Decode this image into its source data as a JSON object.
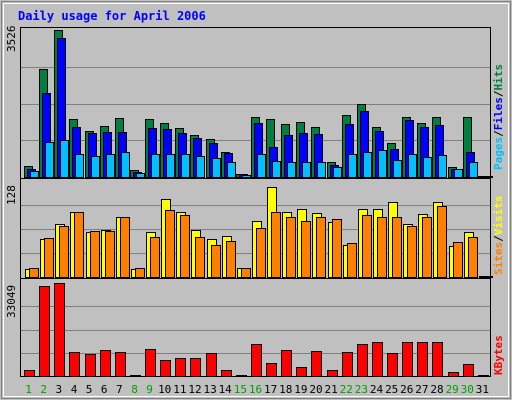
{
  "chart_data": {
    "type": "bar",
    "title": "Daily usage for April 2006",
    "categories": [
      "1",
      "2",
      "3",
      "4",
      "5",
      "6",
      "7",
      "8",
      "9",
      "10",
      "11",
      "12",
      "13",
      "14",
      "15",
      "16",
      "17",
      "18",
      "19",
      "20",
      "21",
      "22",
      "23",
      "24",
      "25",
      "26",
      "27",
      "28",
      "29",
      "30",
      "31"
    ],
    "weekend_days": [
      "1",
      "2",
      "8",
      "9",
      "15",
      "16",
      "22",
      "23",
      "29",
      "30"
    ],
    "panels": [
      {
        "name": "hits-files-pages",
        "ymax_label": "3526",
        "ymax": 3526,
        "series": [
          {
            "name": "Hits",
            "color": "#008040",
            "values": [
              260,
              2580,
              3526,
              1390,
              1110,
              1230,
              1410,
              160,
              1400,
              1300,
              1170,
              1000,
              900,
              590,
              80,
              1450,
              1400,
              1270,
              1320,
              1190,
              350,
              1480,
              1750,
              1210,
              820,
              1430,
              1300,
              1430,
              240,
              1450,
              0
            ]
          },
          {
            "name": "Files",
            "color": "#0000ff",
            "values": [
              190,
              2020,
              3340,
              1210,
              1060,
              1080,
              1090,
              120,
              1170,
              1150,
              1060,
              940,
              820,
              580,
              60,
              1300,
              720,
              1000,
              1050,
              1020,
              280,
              1270,
              1580,
              1100,
              680,
              1360,
              1200,
              1250,
              200,
              590,
              0
            ]
          },
          {
            "name": "Pages",
            "color": "#00c0ff",
            "values": [
              140,
              850,
              880,
              540,
              500,
              540,
              590,
              90,
              560,
              540,
              540,
              510,
              460,
              350,
              40,
              560,
              390,
              360,
              360,
              350,
              230,
              550,
              610,
              650,
              410,
              550,
              490,
              520,
              180,
              350,
              0
            ]
          }
        ]
      },
      {
        "name": "visits-sites",
        "ymax_label": "128",
        "ymax": 128,
        "series": [
          {
            "name": "Visits",
            "color": "#ffff00",
            "values": [
              10,
              50,
              70,
              86,
              60,
              62,
              80,
              10,
              60,
              104,
              86,
              62,
              50,
              55,
              12,
              74,
              120,
              87,
              90,
              85,
              73,
              42,
              90,
              90,
              100,
              70,
              84,
              100,
              41,
              60,
              0
            ]
          },
          {
            "name": "Sites",
            "color": "#ff8000",
            "values": [
              12,
              52,
              68,
              87,
              61,
              61,
              80,
              12,
              53,
              89,
              83,
              53,
              43,
              48,
              12,
              65,
              87,
              80,
              75,
              80,
              77,
              45,
              83,
              80,
              80,
              68,
              80,
              94,
              47,
              53,
              0
            ]
          }
        ]
      },
      {
        "name": "kbytes",
        "ymax_label": "33049",
        "ymax": 33049,
        "series": [
          {
            "name": "KBytes",
            "color": "#ff0000",
            "values": [
              2200,
              32000,
              33049,
              8500,
              7800,
              9300,
              8400,
              0,
              9600,
              5800,
              6400,
              6400,
              8200,
              2200,
              0,
              11300,
              4500,
              9200,
              3100,
              8800,
              2100,
              8600,
              11300,
              12100,
              8200,
              12000,
              12000,
              12000,
              1400,
              4400,
              0
            ]
          }
        ]
      }
    ],
    "legend_text": [
      "Pages",
      "/",
      "Files",
      "/",
      "Hits",
      "Sites",
      "/",
      "Visits",
      "KBytes"
    ]
  },
  "colors": {
    "background": "#c0c0c0",
    "frame_light": "#ffffff",
    "frame_dark": "#808080",
    "title": "#0000ff",
    "day_label_weekday": "#000000",
    "day_label_weekend": "#00a000",
    "grid": "#808080",
    "legend_slash": "#000000"
  }
}
